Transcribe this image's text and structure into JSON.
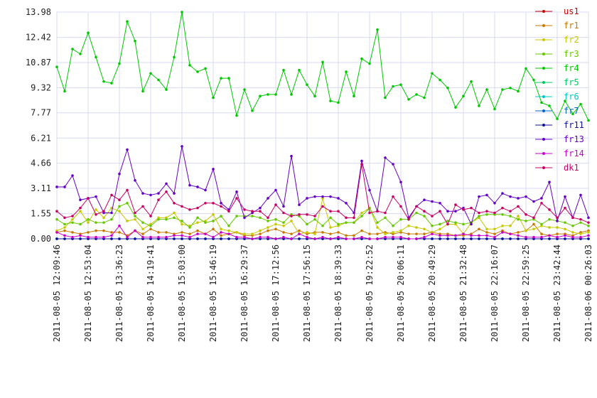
{
  "chart_data": {
    "type": "line",
    "categories": [
      "2011-08-05 12:09:46",
      null,
      null,
      null,
      "2011-08-05 12:53:04",
      null,
      null,
      null,
      "2011-08-05 13:36:23",
      null,
      null,
      null,
      "2011-08-05 14:19:41",
      null,
      null,
      null,
      "2011-08-05 15:03:00",
      null,
      null,
      null,
      "2011-08-05 15:46:19",
      null,
      null,
      null,
      "2011-08-05 16:29:37",
      null,
      null,
      null,
      "2011-08-05 17:12:56",
      null,
      null,
      null,
      "2011-08-05 17:56:15",
      null,
      null,
      null,
      "2011-08-05 18:39:33",
      null,
      null,
      null,
      "2011-08-05 19:22:52",
      null,
      null,
      null,
      "2011-08-05 20:06:11",
      null,
      null,
      null,
      "2011-08-05 20:49:29",
      null,
      null,
      null,
      "2011-08-05 21:32:48",
      null,
      null,
      null,
      "2011-08-05 22:16:07",
      null,
      null,
      null,
      "2011-08-05 22:59:25",
      null,
      null,
      null,
      "2011-08-05 23:42:44",
      null,
      null,
      null,
      "2011-08-06 00:26:03"
    ],
    "ylim": [
      0,
      13.98
    ],
    "yticks": [
      {
        "value": 0,
        "label": "0.00"
      },
      1.55,
      3.11,
      4.66,
      6.21,
      7.77,
      9.32,
      10.87,
      12.42,
      13.98
    ],
    "grid": true,
    "legend": "right",
    "series": [
      {
        "name": "us1",
        "color": "#c80000",
        "values": [
          0,
          0,
          0,
          0,
          0,
          0,
          0,
          0,
          0,
          0,
          0,
          0,
          0,
          0,
          0,
          0,
          0,
          0,
          0,
          0,
          0,
          0,
          0,
          0,
          0,
          0,
          0,
          0,
          0,
          0,
          0,
          0,
          0,
          0,
          0,
          0,
          0,
          0,
          0,
          0,
          0,
          0,
          0,
          0,
          0,
          0,
          0,
          0,
          0,
          0,
          0,
          0,
          0,
          0,
          0,
          0,
          0,
          0,
          0,
          0,
          0,
          0,
          0,
          0,
          0,
          0,
          0,
          0,
          0
        ]
      },
      {
        "name": "fr1",
        "color": "#c87800",
        "values": [
          0.4,
          0.5,
          0.4,
          0.3,
          0.4,
          0.5,
          0.5,
          0.4,
          0.4,
          0.2,
          0.5,
          0.3,
          0.6,
          0.4,
          0.4,
          0.3,
          0.4,
          0.3,
          0.5,
          0.3,
          0.6,
          0.2,
          0.3,
          0.4,
          0.2,
          0.2,
          0.3,
          0.5,
          0.6,
          0.4,
          0.3,
          0.5,
          0.3,
          0.4,
          0.4,
          0.3,
          0.4,
          0.2,
          0.2,
          0.5,
          0.3,
          0.3,
          0.4,
          0.3,
          0.4,
          0.3,
          0.3,
          0.3,
          0.4,
          0.3,
          0.3,
          0.2,
          0.2,
          0.3,
          0.6,
          0.4,
          0.3,
          0.5,
          0.3,
          0.4,
          0.5,
          0.9,
          0.3,
          0.2,
          0.3,
          0.3,
          0.2,
          0.4,
          0.5
        ]
      },
      {
        "name": "fr2",
        "color": "#c8c800",
        "values": [
          0.5,
          0.7,
          1.2,
          1.7,
          1.0,
          1.8,
          1.3,
          1.9,
          1.7,
          1.1,
          1.2,
          0.6,
          0.9,
          1.3,
          1.3,
          1.6,
          0.9,
          0.8,
          1.0,
          1.1,
          1.5,
          0.6,
          0.5,
          0.4,
          0.3,
          0.3,
          0.5,
          0.7,
          0.9,
          0.8,
          1.1,
          0.3,
          0.4,
          0.3,
          2.5,
          0.7,
          0.8,
          1.0,
          1.0,
          1.6,
          1.9,
          0.7,
          0.3,
          0.4,
          0.5,
          0.8,
          0.7,
          0.6,
          0.4,
          0.6,
          0.9,
          0.9,
          0.3,
          1.0,
          1.3,
          0.6,
          0.6,
          0.8,
          0.8,
          1.4,
          0.5,
          0.6,
          0.8,
          0.7,
          0.7,
          0.6,
          0.4,
          0.3,
          0.4
        ]
      },
      {
        "name": "fr3",
        "color": "#64c800",
        "values": [
          1.2,
          0.9,
          1.0,
          0.9,
          1.2,
          1.0,
          1.0,
          1.2,
          2.0,
          2.2,
          1.4,
          1.0,
          0.8,
          1.2,
          1.2,
          1.3,
          1.1,
          0.7,
          1.3,
          1.0,
          1.1,
          1.4,
          0.8,
          1.4,
          1.4,
          1.4,
          1.3,
          1.1,
          1.2,
          1.0,
          1.5,
          1.4,
          0.9,
          1.2,
          0.8,
          1.3,
          0.9,
          1.0,
          1.0,
          1.4,
          1.9,
          1.0,
          1.3,
          0.8,
          1.2,
          1.2,
          1.6,
          1.4,
          0.8,
          0.9,
          1.1,
          1.0,
          0.9,
          1.0,
          1.4,
          1.5,
          1.5,
          1.5,
          1.4,
          1.2,
          1.1,
          1.2,
          0.9,
          1.2,
          1.1,
          1.0,
          0.8,
          1.0,
          0.8
        ]
      },
      {
        "name": "fr4",
        "color": "#00c800",
        "values": [
          10.6,
          9.1,
          11.7,
          11.4,
          12.7,
          11.2,
          9.7,
          9.6,
          10.8,
          13.4,
          12.2,
          9.1,
          10.2,
          9.8,
          9.2,
          11.2,
          13.98,
          10.7,
          10.3,
          10.5,
          8.7,
          9.9,
          9.9,
          7.6,
          9.2,
          7.9,
          8.8,
          8.9,
          8.9,
          10.4,
          8.9,
          10.4,
          9.5,
          8.8,
          10.9,
          8.5,
          8.4,
          10.3,
          8.8,
          11.1,
          10.8,
          12.9,
          8.7,
          9.4,
          9.5,
          8.6,
          8.9,
          8.7,
          10.2,
          9.8,
          9.3,
          8.1,
          8.8,
          9.7,
          8.2,
          9.2,
          8.0,
          9.2,
          9.3,
          9.1,
          10.5,
          9.8,
          8.4,
          8.2,
          7.4,
          8.5,
          7.7,
          8.3,
          7.3
        ]
      },
      {
        "name": "fr5",
        "color": "#00c864",
        "values": [
          0,
          0,
          0,
          0,
          0,
          0,
          0,
          0,
          0,
          0,
          0,
          0,
          0,
          0,
          0,
          0,
          0,
          0,
          0,
          0,
          0,
          0,
          0,
          0,
          0,
          0,
          0,
          0,
          0,
          0,
          0,
          0,
          0,
          0,
          0,
          0,
          0,
          0,
          0,
          0,
          0,
          0,
          0,
          0,
          0,
          0,
          0,
          0,
          0,
          0,
          0,
          0,
          0,
          0,
          0,
          0,
          0,
          0,
          0,
          0,
          0,
          0,
          0,
          0,
          0,
          0,
          0,
          0,
          0
        ]
      },
      {
        "name": "fr6",
        "color": "#00c8c8",
        "values": [
          0,
          0,
          0,
          0,
          0,
          0,
          0,
          0,
          0,
          0,
          0,
          0,
          0,
          0,
          0,
          0,
          0,
          0,
          0,
          0,
          0,
          0,
          0,
          0,
          0,
          0,
          0,
          0,
          0,
          0,
          0,
          0,
          0,
          0,
          0,
          0,
          0,
          0,
          0,
          0,
          0,
          0,
          0,
          0,
          0,
          0,
          0,
          0,
          0,
          0,
          0,
          0,
          0,
          0,
          0,
          0,
          0,
          0,
          0,
          0,
          0,
          0,
          0,
          0,
          0,
          0,
          0,
          0,
          0
        ]
      },
      {
        "name": "fr7",
        "color": "#0064c8",
        "values": [
          0,
          0,
          0,
          0,
          0,
          0,
          0,
          0,
          0,
          0,
          0,
          0,
          0,
          0,
          0,
          0,
          0,
          0,
          0,
          0,
          0,
          0,
          0,
          0,
          0,
          0,
          0,
          0,
          0,
          0,
          0,
          0,
          0,
          0,
          0,
          0,
          0,
          0,
          0,
          0,
          0,
          0,
          0,
          0,
          0,
          0,
          0,
          0,
          0,
          0,
          0,
          0,
          0,
          0,
          0,
          0,
          0,
          0,
          0,
          0,
          0,
          0,
          0,
          0,
          0,
          0,
          0,
          0,
          0
        ]
      },
      {
        "name": "fr11",
        "color": "#1010a0",
        "values": [
          0,
          0,
          0,
          0,
          0,
          0,
          0,
          0,
          0,
          0,
          0,
          0,
          0,
          0,
          0,
          0,
          0,
          0,
          0,
          0,
          0,
          0,
          0,
          0,
          0,
          0,
          0,
          0,
          0,
          0,
          0,
          0,
          0,
          0,
          0,
          0,
          0,
          0,
          0,
          0,
          0,
          0,
          0,
          0,
          0,
          0,
          0,
          0,
          0,
          0,
          0,
          0,
          0,
          0,
          0,
          0,
          0,
          0,
          0,
          0,
          0,
          0,
          0,
          0,
          0,
          0,
          0,
          0,
          0
        ]
      },
      {
        "name": "fr13",
        "color": "#6400c8",
        "values": [
          3.2,
          3.2,
          3.9,
          2.4,
          2.5,
          2.6,
          1.6,
          1.6,
          4.0,
          5.5,
          3.6,
          2.8,
          2.7,
          2.8,
          3.4,
          2.8,
          5.7,
          3.3,
          3.2,
          3.0,
          4.3,
          2.2,
          1.8,
          2.9,
          1.3,
          1.6,
          1.9,
          2.5,
          3.0,
          2.0,
          5.1,
          2.1,
          2.5,
          2.6,
          2.6,
          2.6,
          2.5,
          2.2,
          1.6,
          4.8,
          3.0,
          1.7,
          5.0,
          4.6,
          3.5,
          1.3,
          2.0,
          2.4,
          2.3,
          2.2,
          1.7,
          1.7,
          1.9,
          0.9,
          2.6,
          2.7,
          2.2,
          2.8,
          2.6,
          2.5,
          2.6,
          2.3,
          2.5,
          3.5,
          1.1,
          2.6,
          1.3,
          2.7,
          1.3
        ]
      },
      {
        "name": "fr14",
        "color": "#c800c8",
        "values": [
          0.4,
          0.2,
          0.1,
          0.2,
          0.1,
          0.1,
          0.1,
          0.2,
          0.8,
          0.1,
          0.5,
          0.1,
          0.1,
          0.1,
          0.1,
          0.2,
          0.2,
          0.1,
          0.3,
          0.3,
          0.1,
          0.4,
          0.3,
          0.1,
          0.1,
          0.0,
          0.1,
          0.1,
          0.0,
          0.1,
          0.0,
          0.3,
          0.1,
          0.0,
          0.1,
          0.0,
          0.1,
          0.0,
          0.0,
          0.1,
          0.0,
          0.0,
          0.1,
          0.1,
          0.1,
          0.0,
          0.0,
          0.1,
          0.3,
          0.2,
          0.2,
          0.2,
          0.3,
          0.2,
          0.2,
          0.2,
          0.1,
          0.4,
          0.3,
          0.2,
          0.1,
          0.1,
          0.1,
          0.2,
          0.1,
          0.2,
          0.1,
          0.1,
          0.2
        ]
      },
      {
        "name": "dk1",
        "color": "#c80064",
        "values": [
          1.7,
          1.3,
          1.4,
          1.9,
          2.5,
          1.5,
          1.7,
          2.7,
          2.4,
          3.0,
          1.6,
          2.0,
          1.4,
          2.4,
          2.9,
          2.2,
          2.0,
          1.8,
          1.9,
          2.2,
          2.2,
          2.0,
          1.7,
          2.5,
          1.8,
          1.7,
          1.7,
          1.3,
          2.1,
          1.6,
          1.4,
          1.5,
          1.5,
          1.4,
          2.0,
          1.7,
          1.7,
          1.3,
          1.3,
          4.6,
          1.6,
          1.7,
          1.6,
          2.6,
          2.0,
          1.2,
          2.0,
          1.7,
          1.4,
          1.7,
          0.9,
          2.1,
          1.8,
          1.9,
          1.6,
          1.7,
          1.6,
          1.9,
          1.7,
          2.0,
          1.5,
          1.3,
          2.2,
          1.8,
          1.3,
          1.9,
          1.3,
          1.2,
          1.0
        ]
      }
    ]
  }
}
